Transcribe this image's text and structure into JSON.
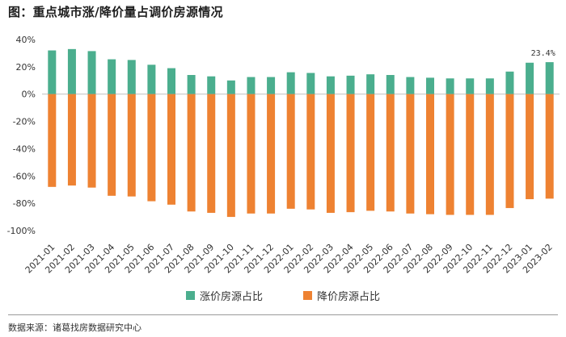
{
  "header": {
    "title": "图：重点城市涨/降价量占调价房源情况"
  },
  "footer": {
    "source": "数据来源：诸葛找房数据研究中心"
  },
  "chart_data": {
    "type": "bar",
    "stacked": "diverging",
    "title": "图：重点城市涨/降价量占调价房源情况",
    "xlabel": "",
    "ylabel": "",
    "ylim": [
      -100,
      40
    ],
    "yticks": [
      40,
      20,
      0,
      -20,
      -40,
      -60,
      -80,
      -100
    ],
    "ytick_labels": [
      "40%",
      "20%",
      "0%",
      "-20%",
      "-40%",
      "-60%",
      "-80%",
      "-100%"
    ],
    "grid": false,
    "legend_position": "bottom",
    "categories": [
      "2021-01",
      "2021-02",
      "2021-03",
      "2021-04",
      "2021-05",
      "2021-06",
      "2021-07",
      "2021-08",
      "2021-09",
      "2021-10",
      "2021-11",
      "2021-12",
      "2022-01",
      "2022-02",
      "2022-03",
      "2022-04",
      "2022-05",
      "2022-06",
      "2022-07",
      "2022-08",
      "2022-09",
      "2022-10",
      "2022-11",
      "2022-12",
      "2023-01",
      "2023-02"
    ],
    "series": [
      {
        "name": "涨价房源占比",
        "color": "#4bae8e",
        "values": [
          32.0,
          33.0,
          31.5,
          25.5,
          25.0,
          21.5,
          19.0,
          14.0,
          13.0,
          10.0,
          12.5,
          12.5,
          16.0,
          15.5,
          13.0,
          13.5,
          14.5,
          14.0,
          12.5,
          12.0,
          11.5,
          11.5,
          11.5,
          16.5,
          23.0,
          23.4
        ]
      },
      {
        "name": "降价房源占比",
        "color": "#ee8232",
        "values": [
          -68.0,
          -67.0,
          -68.5,
          -74.5,
          -75.0,
          -78.5,
          -81.0,
          -86.0,
          -87.0,
          -90.0,
          -87.5,
          -87.5,
          -84.0,
          -84.5,
          -87.0,
          -86.5,
          -85.5,
          -86.0,
          -87.5,
          -88.0,
          -88.5,
          -88.5,
          -88.5,
          -83.5,
          -77.0,
          -76.6
        ]
      }
    ],
    "annotations": [
      {
        "category": "2023-02",
        "series": "涨价房源占比",
        "text": "23.4%"
      }
    ]
  }
}
